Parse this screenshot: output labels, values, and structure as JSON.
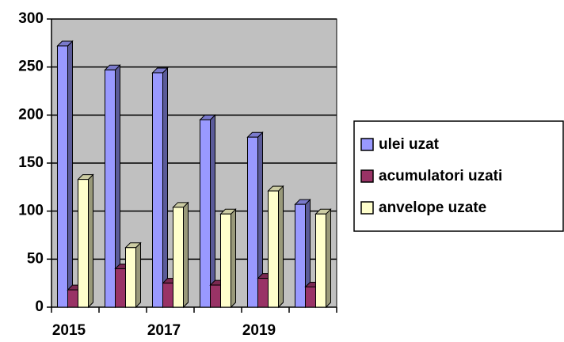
{
  "chart_data": {
    "type": "bar",
    "categories": [
      "2015",
      null,
      "2017",
      null,
      "2019",
      null
    ],
    "series": [
      {
        "name": "ulei uzat",
        "color": "#9999ff",
        "values": [
          272,
          247,
          244,
          195,
          177,
          107
        ]
      },
      {
        "name": "acumulatori uzati",
        "color": "#993366",
        "values": [
          18,
          40,
          25,
          23,
          30,
          21
        ]
      },
      {
        "name": "anvelope uzate",
        "color": "#ffffcc",
        "values": [
          133,
          62,
          104,
          97,
          121,
          97
        ]
      }
    ],
    "ylim": [
      0,
      300
    ],
    "yticks": [
      0,
      50,
      100,
      150,
      200,
      250,
      300
    ],
    "grid": true,
    "legend": "right"
  }
}
